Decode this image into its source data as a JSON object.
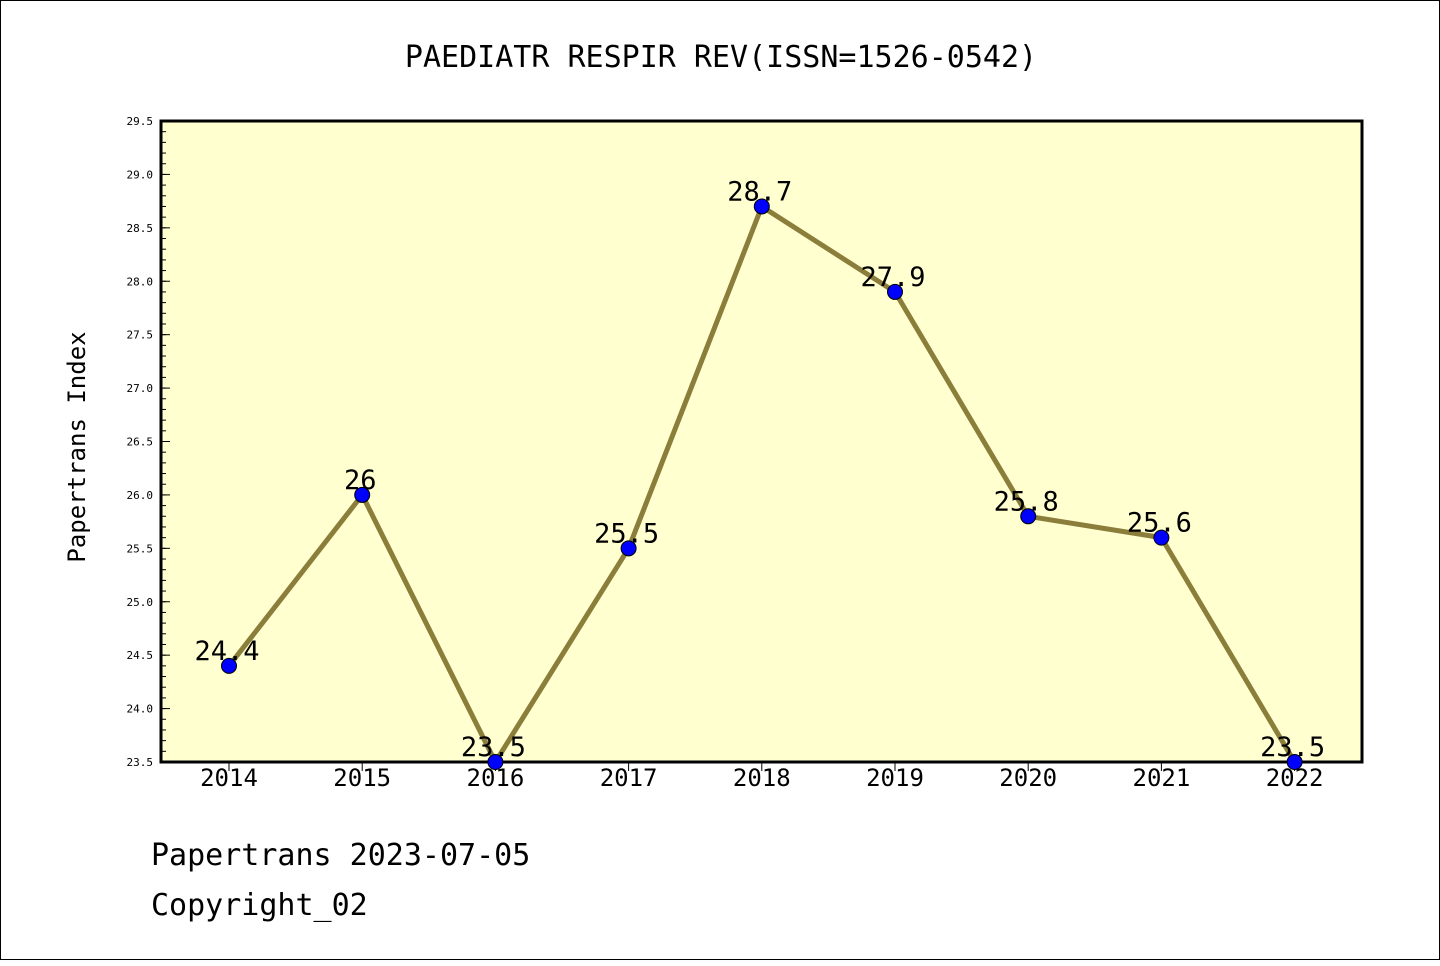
{
  "chart_data": {
    "type": "line",
    "title": "PAEDIATR RESPIR REV(ISSN=1526-0542)",
    "xlabel": "",
    "ylabel": "Papertrans Index",
    "categories": [
      "2014",
      "2015",
      "2016",
      "2017",
      "2018",
      "2019",
      "2020",
      "2021",
      "2022"
    ],
    "values": [
      24.4,
      26,
      23.5,
      25.5,
      28.7,
      27.9,
      25.8,
      25.6,
      23.5
    ],
    "data_labels": [
      "24.4",
      "26",
      "23.5",
      "25.5",
      "28.7",
      "27.9",
      "25.8",
      "25.6",
      "23.5"
    ],
    "ylim": [
      23.5,
      29.5
    ],
    "yticks": [
      "23.5",
      "24.0",
      "24.5",
      "25.0",
      "25.5",
      "26.0",
      "26.5",
      "27.0",
      "27.5",
      "28.0",
      "28.5",
      "29.0",
      "29.5"
    ],
    "grid": false,
    "legend": "none",
    "colors": {
      "plot_background": "#ffffd0",
      "line": "#8b7d3a",
      "marker": "#0000ff"
    }
  },
  "footer": {
    "date_line": "Papertrans 2023-07-05",
    "copyright_line": "Copyright_02"
  }
}
